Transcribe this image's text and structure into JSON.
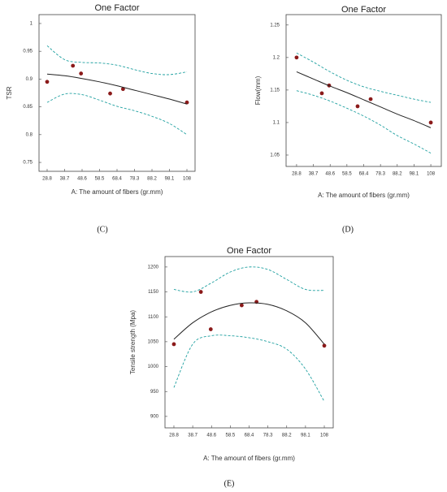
{
  "chart_data": [
    {
      "type": "scatter",
      "title": "One Factor",
      "xlabel": "A: The amount of fibers (gr.mm)",
      "ylabel": "TSR",
      "label": "(C)",
      "xlim": [
        24.2,
        112.6
      ],
      "xticks": [
        28.8,
        38.7,
        48.6,
        58.5,
        68.4,
        78.3,
        88.2,
        98.1,
        108
      ],
      "ylim": [
        0.734,
        1.016
      ],
      "yticks": [
        0.75,
        0.8,
        0.85,
        0.9,
        0.95,
        1
      ],
      "series": [
        {
          "type": "scatter",
          "color": "#8b1a1a",
          "x": [
            28.8,
            43.4,
            48.0,
            64.5,
            71.8,
            108
          ],
          "values": [
            0.895,
            0.924,
            0.91,
            0.874,
            0.882,
            0.858
          ]
        },
        {
          "type": "line",
          "color": "#222222",
          "x": [
            28.8,
            38.7,
            48.6,
            58.5,
            68.4,
            78.3,
            88.2,
            98.1,
            108
          ],
          "values": [
            0.909,
            0.906,
            0.901,
            0.895,
            0.888,
            0.88,
            0.872,
            0.864,
            0.855
          ]
        },
        {
          "type": "line",
          "color": "#1fa0a0",
          "dashed": true,
          "x": [
            28.8,
            38.7,
            48.6,
            58.5,
            68.4,
            78.3,
            88.2,
            98.1,
            108
          ],
          "values": [
            0.96,
            0.935,
            0.93,
            0.929,
            0.925,
            0.917,
            0.91,
            0.908,
            0.913
          ]
        },
        {
          "type": "line",
          "color": "#1fa0a0",
          "dashed": true,
          "x": [
            28.8,
            38.7,
            48.6,
            58.5,
            68.4,
            78.3,
            88.2,
            98.1,
            108
          ],
          "values": [
            0.858,
            0.873,
            0.872,
            0.862,
            0.851,
            0.843,
            0.833,
            0.82,
            0.8
          ]
        }
      ]
    },
    {
      "type": "scatter",
      "title": "One Factor",
      "xlabel": "A: The amount of fibers (gr.mm)",
      "ylabel": "Flow(mm)",
      "label": "(D)",
      "xlim": [
        22.6,
        114.2
      ],
      "xticks": [
        28.8,
        38.7,
        48.6,
        58.5,
        68.4,
        78.3,
        88.2,
        98.1,
        108
      ],
      "ylim": [
        1.0325,
        1.266
      ],
      "yticks": [
        1.05,
        1.1,
        1.15,
        1.2,
        1.25
      ],
      "series": [
        {
          "type": "scatter",
          "color": "#8b1a1a",
          "x": [
            28.8,
            43.7,
            48.0,
            64.8,
            72.5,
            108
          ],
          "values": [
            1.2,
            1.145,
            1.157,
            1.125,
            1.136,
            1.1
          ]
        },
        {
          "type": "line",
          "color": "#222222",
          "x": [
            28.8,
            38.7,
            48.6,
            58.5,
            68.4,
            78.3,
            88.2,
            98.1,
            108
          ],
          "values": [
            1.178,
            1.167,
            1.156,
            1.146,
            1.135,
            1.124,
            1.113,
            1.103,
            1.092
          ]
        },
        {
          "type": "line",
          "color": "#1fa0a0",
          "dashed": true,
          "x": [
            28.8,
            38.7,
            48.6,
            58.5,
            68.4,
            78.3,
            88.2,
            98.1,
            108
          ],
          "values": [
            1.207,
            1.193,
            1.178,
            1.165,
            1.155,
            1.148,
            1.142,
            1.136,
            1.131
          ]
        },
        {
          "type": "line",
          "color": "#1fa0a0",
          "dashed": true,
          "x": [
            28.8,
            38.7,
            48.6,
            58.5,
            68.4,
            78.3,
            88.2,
            98.1,
            108
          ],
          "values": [
            1.149,
            1.142,
            1.133,
            1.122,
            1.11,
            1.096,
            1.08,
            1.067,
            1.053
          ]
        }
      ]
    },
    {
      "type": "scatter",
      "title": "One Factor",
      "xlabel": "A: The amount of fibers (gr.mm)",
      "ylabel": "Tensile strength (Mpa)",
      "label": "(E)",
      "xlim": [
        24.1,
        112.7
      ],
      "xticks": [
        28.8,
        38.7,
        48.6,
        58.5,
        68.4,
        78.3,
        88.2,
        98.1,
        108
      ],
      "ylim": [
        877,
        1221
      ],
      "yticks": [
        900,
        950,
        1000,
        1050,
        1100,
        1150,
        1200
      ],
      "series": [
        {
          "type": "scatter",
          "color": "#8b1a1a",
          "x": [
            28.8,
            43.0,
            48.2,
            64.5,
            72.3,
            108
          ],
          "values": [
            1045,
            1150,
            1075,
            1123,
            1130,
            1042
          ]
        },
        {
          "type": "line",
          "color": "#222222",
          "x": [
            28.8,
            38.7,
            48.6,
            58.5,
            68.4,
            78.3,
            88.2,
            98.1,
            108
          ],
          "values": [
            1055,
            1088,
            1110,
            1123,
            1128,
            1125,
            1112,
            1088,
            1045
          ]
        },
        {
          "type": "line",
          "color": "#1fa0a0",
          "dashed": true,
          "x": [
            28.8,
            38.7,
            48.6,
            58.5,
            68.4,
            78.3,
            88.2,
            98.1,
            108
          ],
          "values": [
            1155,
            1150,
            1168,
            1190,
            1200,
            1195,
            1175,
            1155,
            1153
          ]
        },
        {
          "type": "line",
          "color": "#1fa0a0",
          "dashed": true,
          "x": [
            28.8,
            38.7,
            48.6,
            58.5,
            68.4,
            78.3,
            88.2,
            98.1,
            108
          ],
          "values": [
            958,
            1045,
            1062,
            1062,
            1058,
            1050,
            1035,
            995,
            930
          ]
        }
      ]
    }
  ]
}
